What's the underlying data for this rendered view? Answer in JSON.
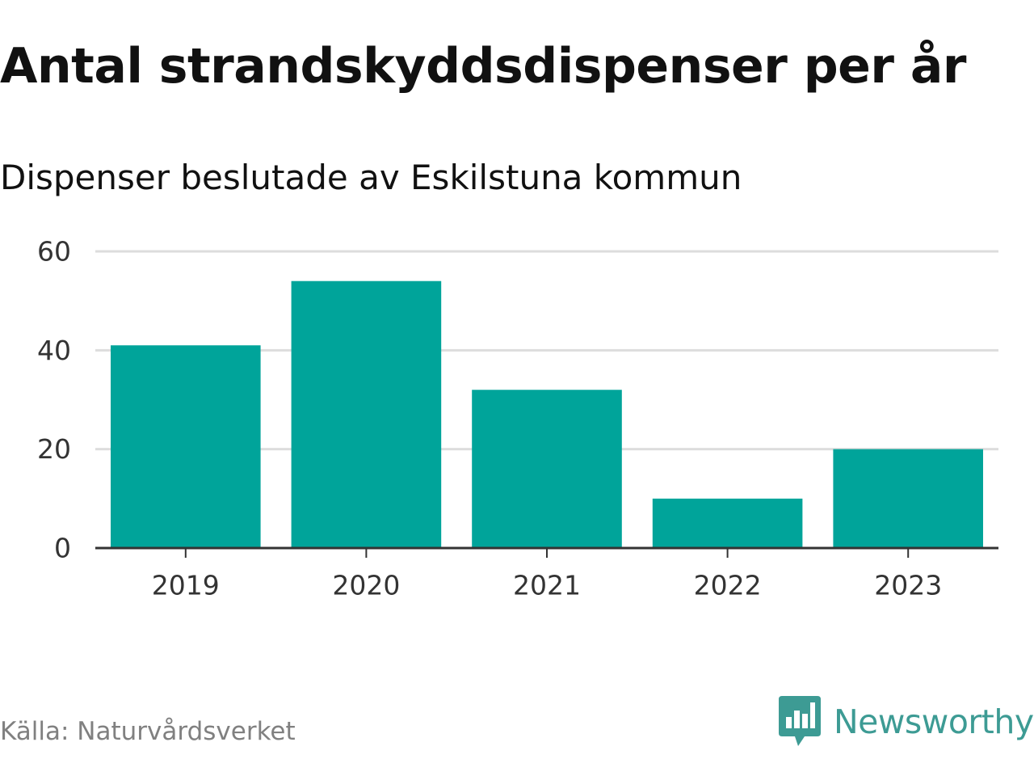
{
  "title": "Antal strandskyddsdispenser per år",
  "subtitle": "Dispenser beslutade av Eskilstuna kommun",
  "source": "Källa: Naturvårdsverket",
  "brand": {
    "name": "Newsworthy",
    "icon": "newsworthy-logo-icon",
    "color": "#3d9b94"
  },
  "colors": {
    "bar": "#00a49a",
    "grid": "#dddddd",
    "axis": "#333333"
  },
  "chart_data": {
    "type": "bar",
    "title": "Antal strandskyddsdispenser per år",
    "subtitle": "Dispenser beslutade av Eskilstuna kommun",
    "categories": [
      "2019",
      "2020",
      "2021",
      "2022",
      "2023"
    ],
    "values": [
      41,
      54,
      32,
      10,
      20
    ],
    "xlabel": "",
    "ylabel": "",
    "ylim": [
      0,
      60
    ],
    "yticks": [
      0,
      20,
      40,
      60
    ],
    "grid": true,
    "legend": "none"
  }
}
